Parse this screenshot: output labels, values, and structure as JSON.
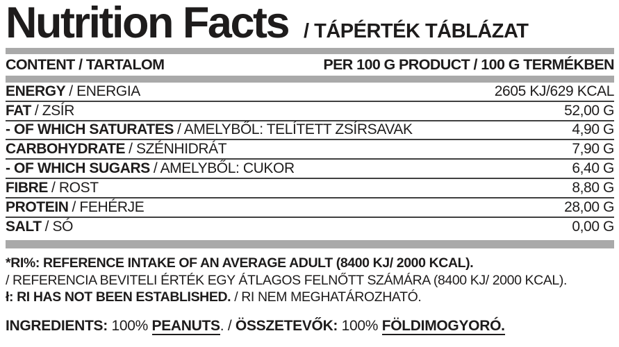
{
  "title": {
    "en": "Nutrition Facts",
    "hu": "/ TÁPÉRTÉK TÁBLÁZAT"
  },
  "table": {
    "header": {
      "left": "CONTENT / TARTALOM",
      "right": "PER 100 G PRODUCT / 100 G TERMÉKBEN"
    },
    "rows": [
      {
        "label_en": "ENERGY",
        "label_hu": "/ ENERGIA",
        "value": "2605 KJ/629 KCAL"
      },
      {
        "label_en": "FAT",
        "label_hu": "/ ZSÍR",
        "value": "52,00 G"
      },
      {
        "label_en": "- OF WHICH SATURATES",
        "label_hu": "/ AMELYBŐL: TELÍTETT ZSÍRSAVAK",
        "value": "4,90 G"
      },
      {
        "label_en": "CARBOHYDRATE",
        "label_hu": "/ SZÉNHIDRÁT",
        "value": "7,90 G"
      },
      {
        "label_en": "- OF WHICH SUGARS",
        "label_hu": "/ AMELYBŐL: CUKOR",
        "value": "6,40 G"
      },
      {
        "label_en": "FIBRE",
        "label_hu": "/ ROST",
        "value": "8,80 G"
      },
      {
        "label_en": "PROTEIN",
        "label_hu": "/ FEHÉRJE",
        "value": "28,00 G"
      },
      {
        "label_en": "SALT",
        "label_hu": "/ SÓ",
        "value": "0,00 G"
      }
    ]
  },
  "footnotes": {
    "ri_en": "*RI%: REFERENCE INTAKE OF AN AVERAGE ADULT (8400 KJ/ 2000 KCAL).",
    "ri_hu": "/ REFERENCIA BEVITELI ÉRTÉK EGY ÁTLAGOS FELNŐTT SZÁMÁRA (8400 KJ/ 2000 KCAL).",
    "ri_na_en": "ł: RI HAS NOT BEEN ESTABLISHED.",
    "ri_na_hu": " / RI NEM MEGHATÁROZHATÓ."
  },
  "ingredients": {
    "label_en": "INGREDIENTS:",
    "amount_en": " 100% ",
    "item_en": "PEANUTS",
    "separator": ". / ",
    "label_hu": "ÖSSZETEVŐK:",
    "amount_hu": " 100% ",
    "item_hu": "FÖLDIMOGYORÓ."
  },
  "colors": {
    "text": "#1e1c1c",
    "bar_gray": "#a9a9a9",
    "row_rule": "#3f3f3f"
  }
}
